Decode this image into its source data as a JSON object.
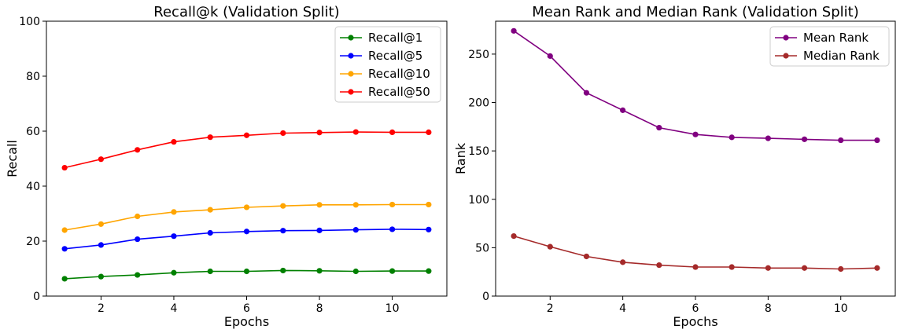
{
  "chart_data": [
    {
      "type": "line",
      "title": "Recall@k (Validation Split)",
      "xlabel": "Epochs",
      "ylabel": "Recall",
      "xlim": [
        0.5,
        11.5
      ],
      "ylim": [
        0,
        100
      ],
      "xticks": [
        2,
        4,
        6,
        8,
        10
      ],
      "yticks": [
        0,
        20,
        40,
        60,
        80,
        100
      ],
      "grid": false,
      "legend_position": "top-right",
      "x": [
        1,
        2,
        3,
        4,
        5,
        6,
        7,
        8,
        9,
        10,
        11
      ],
      "series": [
        {
          "name": "Recall@1",
          "color": "#008000",
          "values": [
            6.3,
            7.1,
            7.7,
            8.5,
            9.0,
            9.0,
            9.3,
            9.2,
            9.0,
            9.1,
            9.1
          ]
        },
        {
          "name": "Recall@5",
          "color": "#0000ff",
          "values": [
            17.2,
            18.6,
            20.7,
            21.8,
            23.0,
            23.5,
            23.8,
            23.9,
            24.1,
            24.3,
            24.2
          ]
        },
        {
          "name": "Recall@10",
          "color": "#ffa500",
          "values": [
            24.0,
            26.2,
            29.0,
            30.6,
            31.4,
            32.3,
            32.8,
            33.2,
            33.2,
            33.3,
            33.3
          ]
        },
        {
          "name": "Recall@50",
          "color": "#ff0000",
          "values": [
            46.7,
            49.8,
            53.2,
            56.1,
            57.8,
            58.5,
            59.3,
            59.5,
            59.7,
            59.6,
            59.6
          ]
        }
      ]
    },
    {
      "type": "line",
      "title": "Mean Rank and Median Rank (Validation Split)",
      "xlabel": "Epochs",
      "ylabel": "Rank",
      "xlim": [
        0.5,
        11.5
      ],
      "ylim": [
        0,
        284
      ],
      "xticks": [
        2,
        4,
        6,
        8,
        10
      ],
      "yticks": [
        0,
        50,
        100,
        150,
        200,
        250
      ],
      "grid": false,
      "legend_position": "top-right",
      "x": [
        1,
        2,
        3,
        4,
        5,
        6,
        7,
        8,
        9,
        10,
        11
      ],
      "series": [
        {
          "name": "Mean Rank",
          "color": "#800080",
          "values": [
            274,
            248,
            210,
            192,
            174,
            167,
            164,
            163,
            162,
            161,
            161
          ]
        },
        {
          "name": "Median Rank",
          "color": "#a52a2a",
          "values": [
            62,
            51,
            41,
            35,
            32,
            30,
            30,
            29,
            29,
            28,
            29
          ]
        }
      ]
    }
  ]
}
